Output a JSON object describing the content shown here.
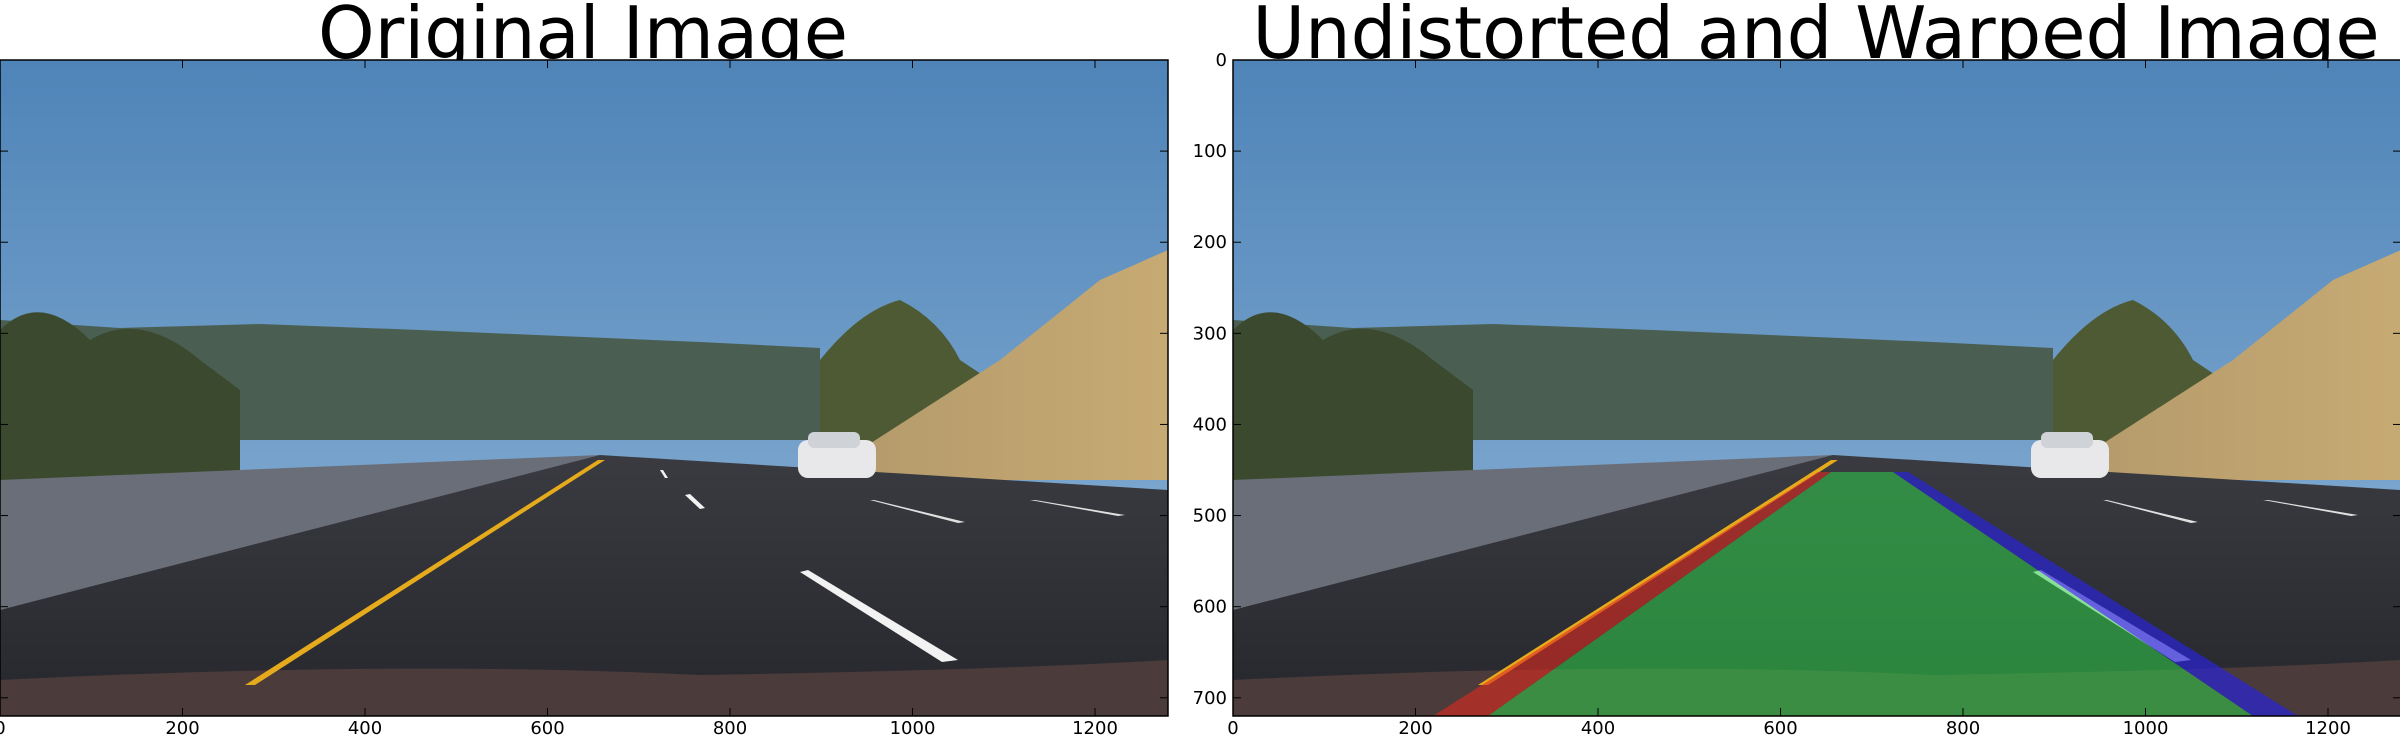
{
  "chart_data": [
    {
      "type": "image",
      "title": "Original Image",
      "xlim": [
        0,
        1280
      ],
      "ylim": [
        720,
        0
      ],
      "xticks": [
        0,
        200,
        400,
        600,
        800,
        1000,
        1200
      ],
      "yticks": [
        0,
        100,
        200,
        300,
        400,
        500,
        600,
        700
      ],
      "show_ytick_labels": false,
      "lane_overlay": false
    },
    {
      "type": "image",
      "title": "Undistorted and Warped Image",
      "xlim": [
        0,
        1280
      ],
      "ylim": [
        720,
        0
      ],
      "xticks": [
        0,
        200,
        400,
        600,
        800,
        1000,
        1200
      ],
      "yticks": [
        0,
        100,
        200,
        300,
        400,
        500,
        600,
        700
      ],
      "show_ytick_labels": true,
      "lane_overlay": true,
      "overlay_colors": {
        "lane_fill": "#2fd14a",
        "left_line": "#e02a1f",
        "right_line": "#2a24d6"
      }
    }
  ],
  "colors": {
    "sky_top": "#4f84b8",
    "sky_bottom": "#86b0d6",
    "hills": "#4a5f52",
    "road": "#2f3036",
    "yellow_line": "#e6ab1c",
    "white_line": "#f2f2f2"
  }
}
